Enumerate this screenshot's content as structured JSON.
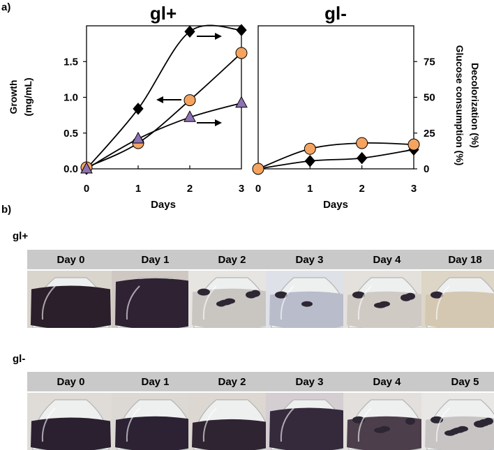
{
  "panel_a_label": "a)",
  "panel_b_label": "b)",
  "chart_data": [
    {
      "type": "line",
      "title": "gl+",
      "xlabel": "Days",
      "ylabel": "Growth\n(mg/mL)",
      "x": [
        0,
        1,
        2,
        3
      ],
      "xlim": [
        0,
        3
      ],
      "ylim": [
        0,
        2.0
      ],
      "y2lim": [
        0,
        100
      ],
      "yticks": [
        "0.0",
        "0.5",
        "1.0",
        "1.5"
      ],
      "xticks": [
        "0",
        "1",
        "2",
        "3"
      ],
      "series": [
        {
          "axis": "left",
          "marker": "diamond",
          "color": "#000000",
          "values": [
            0.0,
            0.84,
            1.92,
            1.94
          ]
        },
        {
          "axis": "right",
          "marker": "circle",
          "color": "#f4a460",
          "values": [
            1,
            18,
            48,
            81
          ]
        },
        {
          "axis": "right",
          "marker": "triangle",
          "color": "#8e72b3",
          "values": [
            0,
            21,
            36,
            46
          ]
        }
      ],
      "annotations": [
        "arrow-right",
        "arrow-left",
        "arrow-right"
      ]
    },
    {
      "type": "line",
      "title": "gl-",
      "xlabel": "Days",
      "y2label_outer": "Decolorization (%)",
      "y2label_inner": "Glucose consumption (%)",
      "x": [
        0,
        1,
        2,
        3
      ],
      "xlim": [
        0,
        3
      ],
      "ylim": [
        0,
        2.0
      ],
      "y2lim": [
        0,
        100
      ],
      "y2ticks": [
        "0",
        "25",
        "50",
        "75"
      ],
      "xticks": [
        "0",
        "1",
        "2",
        "3"
      ],
      "series": [
        {
          "axis": "left",
          "marker": "diamond",
          "color": "#000000",
          "values": [
            0.0,
            0.11,
            0.15,
            0.27
          ]
        },
        {
          "axis": "right",
          "marker": "circle",
          "color": "#f4a460",
          "values": [
            0,
            14,
            18,
            17
          ]
        }
      ]
    }
  ],
  "photos": {
    "gl_plus": {
      "label": "gl+",
      "days": [
        "Day 0",
        "Day 1",
        "Day 2",
        "Day 3",
        "Day 4",
        "Day 18"
      ]
    },
    "gl_minus": {
      "label": "gl-",
      "days": [
        "Day 0",
        "Day 1",
        "Day 2",
        "Day 3",
        "Day 4",
        "Day 5"
      ]
    }
  }
}
